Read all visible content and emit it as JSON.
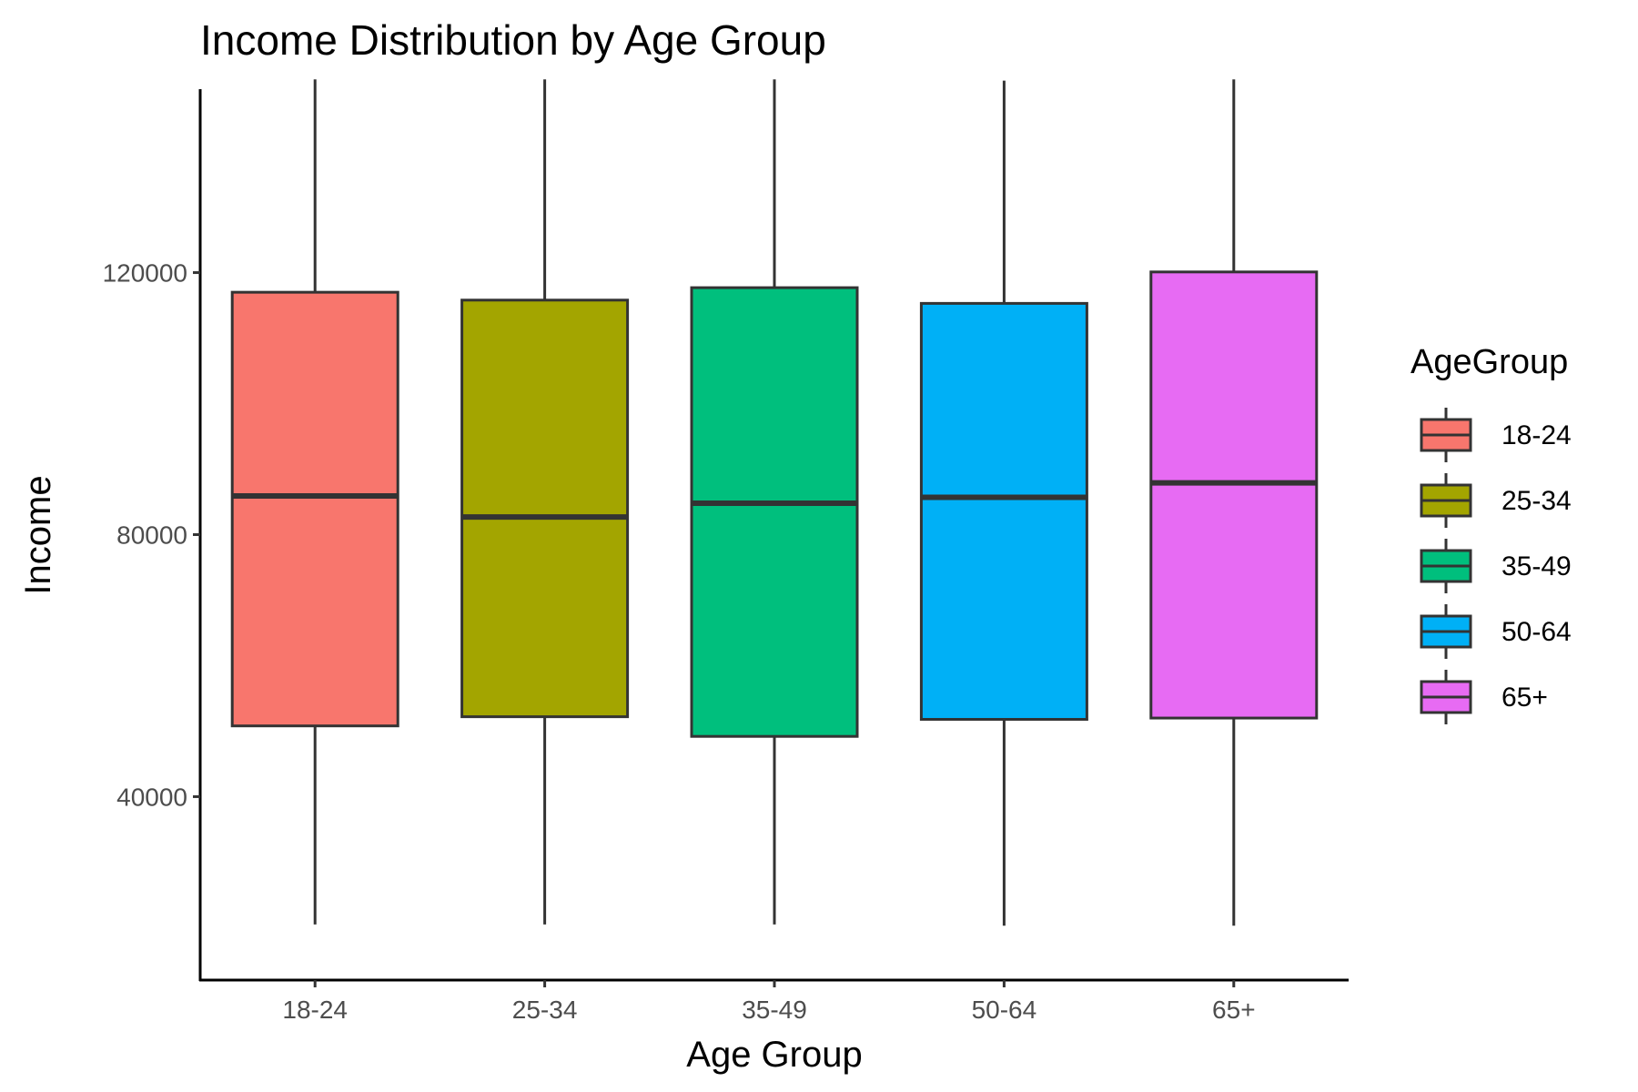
{
  "chart_data": {
    "type": "box",
    "title": "Income Distribution by Age Group",
    "xlabel": "Age Group",
    "ylabel": "Income",
    "ylim": [
      12000,
      148000
    ],
    "yticks": [
      40000,
      80000,
      120000
    ],
    "grid": false,
    "legend": {
      "title": "AgeGroup",
      "position": "right"
    },
    "categories": [
      "18-24",
      "25-34",
      "35-49",
      "50-64",
      "65+"
    ],
    "series": [
      {
        "name": "18-24",
        "color": "#F8766D",
        "min": 20500,
        "q1": 50800,
        "median": 85900,
        "q3": 117000,
        "max": 149500
      },
      {
        "name": "25-34",
        "color": "#A3A500",
        "min": 20500,
        "q1": 52200,
        "median": 82700,
        "q3": 115800,
        "max": 149500
      },
      {
        "name": "35-49",
        "color": "#00BF7D",
        "min": 20500,
        "q1": 49200,
        "median": 84800,
        "q3": 117700,
        "max": 149500
      },
      {
        "name": "50-64",
        "color": "#00B0F6",
        "min": 20300,
        "q1": 51800,
        "median": 85700,
        "q3": 115300,
        "max": 149300
      },
      {
        "name": "65+",
        "color": "#E76BF3",
        "min": 20300,
        "q1": 52000,
        "median": 87900,
        "q3": 120100,
        "max": 149500
      }
    ]
  }
}
